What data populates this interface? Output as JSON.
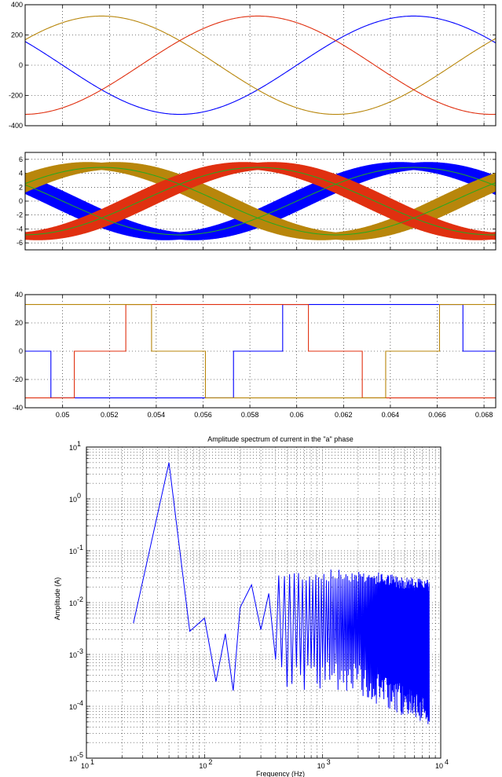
{
  "colors": {
    "phase_a": "#0000ff",
    "phase_b": "#b8860b",
    "phase_c": "#e03010",
    "avg": "#22aa22",
    "grid": "#000000"
  },
  "chart_data": [
    {
      "type": "line",
      "panel": "voltages",
      "xlim": [
        0.0484,
        0.0685
      ],
      "ylim": [
        -400,
        400
      ],
      "yticks": [
        "400",
        "200",
        "0",
        "-200",
        "-400"
      ],
      "grid": true,
      "series": [
        {
          "color": "#0000ff",
          "amplitude": 325,
          "frequency_hz": 50,
          "phase_deg": 0
        },
        {
          "color": "#b8860b",
          "amplitude": 325,
          "frequency_hz": 50,
          "phase_deg": -120
        },
        {
          "color": "#e03010",
          "amplitude": 325,
          "frequency_hz": 50,
          "phase_deg": 120
        }
      ]
    },
    {
      "type": "line",
      "panel": "phase currents with ripple",
      "xlim": [
        0.0484,
        0.0685
      ],
      "ylim": [
        -7,
        7
      ],
      "yticks": [
        "6",
        "4",
        "2",
        "0",
        "-2",
        "-4",
        "-6"
      ],
      "grid": true,
      "series": [
        {
          "color": "#0000ff",
          "amplitude": 5,
          "ripple": 1.5,
          "frequency_hz": 50,
          "phase_deg": 0
        },
        {
          "color": "#b8860b",
          "amplitude": 5,
          "ripple": 1.5,
          "frequency_hz": 50,
          "phase_deg": -120
        },
        {
          "color": "#e03010",
          "amplitude": 5,
          "ripple": 1.5,
          "frequency_hz": 50,
          "phase_deg": 120
        }
      ]
    },
    {
      "type": "line",
      "panel": "switching voltages",
      "xlim": [
        0.0484,
        0.0685
      ],
      "ylim": [
        -40,
        40
      ],
      "yticks": [
        "40",
        "20",
        "0",
        "-20",
        "-40"
      ],
      "xticks": [
        "0.05",
        "0.052",
        "0.054",
        "0.056",
        "0.058",
        "0.06",
        "0.062",
        "0.064",
        "0.066",
        "0.068"
      ],
      "grid": true,
      "series": [
        {
          "color": "#0000ff",
          "steps": [
            [
              0.0484,
              0
            ],
            [
              0.0495,
              0
            ],
            [
              0.0495,
              -33
            ],
            [
              0.0573,
              -33
            ],
            [
              0.0573,
              0
            ],
            [
              0.0594,
              0
            ],
            [
              0.0594,
              33
            ],
            [
              0.0671,
              33
            ],
            [
              0.0671,
              0
            ],
            [
              0.0685,
              0
            ]
          ]
        },
        {
          "color": "#e03010",
          "steps": [
            [
              0.0484,
              -33
            ],
            [
              0.0505,
              -33
            ],
            [
              0.0505,
              0
            ],
            [
              0.0527,
              0
            ],
            [
              0.0527,
              33
            ],
            [
              0.0605,
              33
            ],
            [
              0.0605,
              0
            ],
            [
              0.0628,
              0
            ],
            [
              0.0628,
              -33
            ],
            [
              0.0685,
              -33
            ]
          ]
        },
        {
          "color": "#b8860b",
          "steps": [
            [
              0.0484,
              33
            ],
            [
              0.0538,
              33
            ],
            [
              0.0538,
              0
            ],
            [
              0.0561,
              0
            ],
            [
              0.0561,
              -33
            ],
            [
              0.0638,
              -33
            ],
            [
              0.0638,
              0
            ],
            [
              0.0661,
              0
            ],
            [
              0.0661,
              33
            ],
            [
              0.0685,
              33
            ]
          ]
        }
      ]
    },
    {
      "type": "line",
      "panel": "spectrum",
      "title": "Amplitude spectrum of current in the \"a\" phase",
      "xlabel": "Frequency (Hz)",
      "ylabel": "Amplitude (A)",
      "xscale": "log",
      "yscale": "log",
      "xlim": [
        10,
        10000
      ],
      "ylim": [
        1e-05,
        10
      ],
      "grid": true,
      "xtick_exponents": [
        "1",
        "2",
        "3",
        "4"
      ],
      "ytick_exponents": [
        "1",
        "0",
        "-1",
        "-2",
        "-3",
        "-4",
        "-5"
      ],
      "tick_base": "10",
      "series": [
        {
          "color": "#0000ff",
          "x": [
            25,
            50,
            75,
            100,
            125,
            150,
            175,
            200,
            250,
            300,
            350,
            400,
            500,
            600,
            700,
            800,
            1000,
            1200,
            1500,
            2000,
            3000,
            4000,
            5000,
            6000,
            7000,
            8000
          ],
          "y": [
            0.004,
            5,
            0.0028,
            0.005,
            0.0003,
            0.0025,
            0.0002,
            0.008,
            0.022,
            0.003,
            0.015,
            0.0008,
            0.02,
            0.002,
            0.025,
            0.002,
            0.02,
            0.0015,
            0.03,
            0.001,
            0.01,
            0.0005,
            0.003,
            0.0003,
            0.002,
            0.0005
          ]
        }
      ]
    }
  ]
}
